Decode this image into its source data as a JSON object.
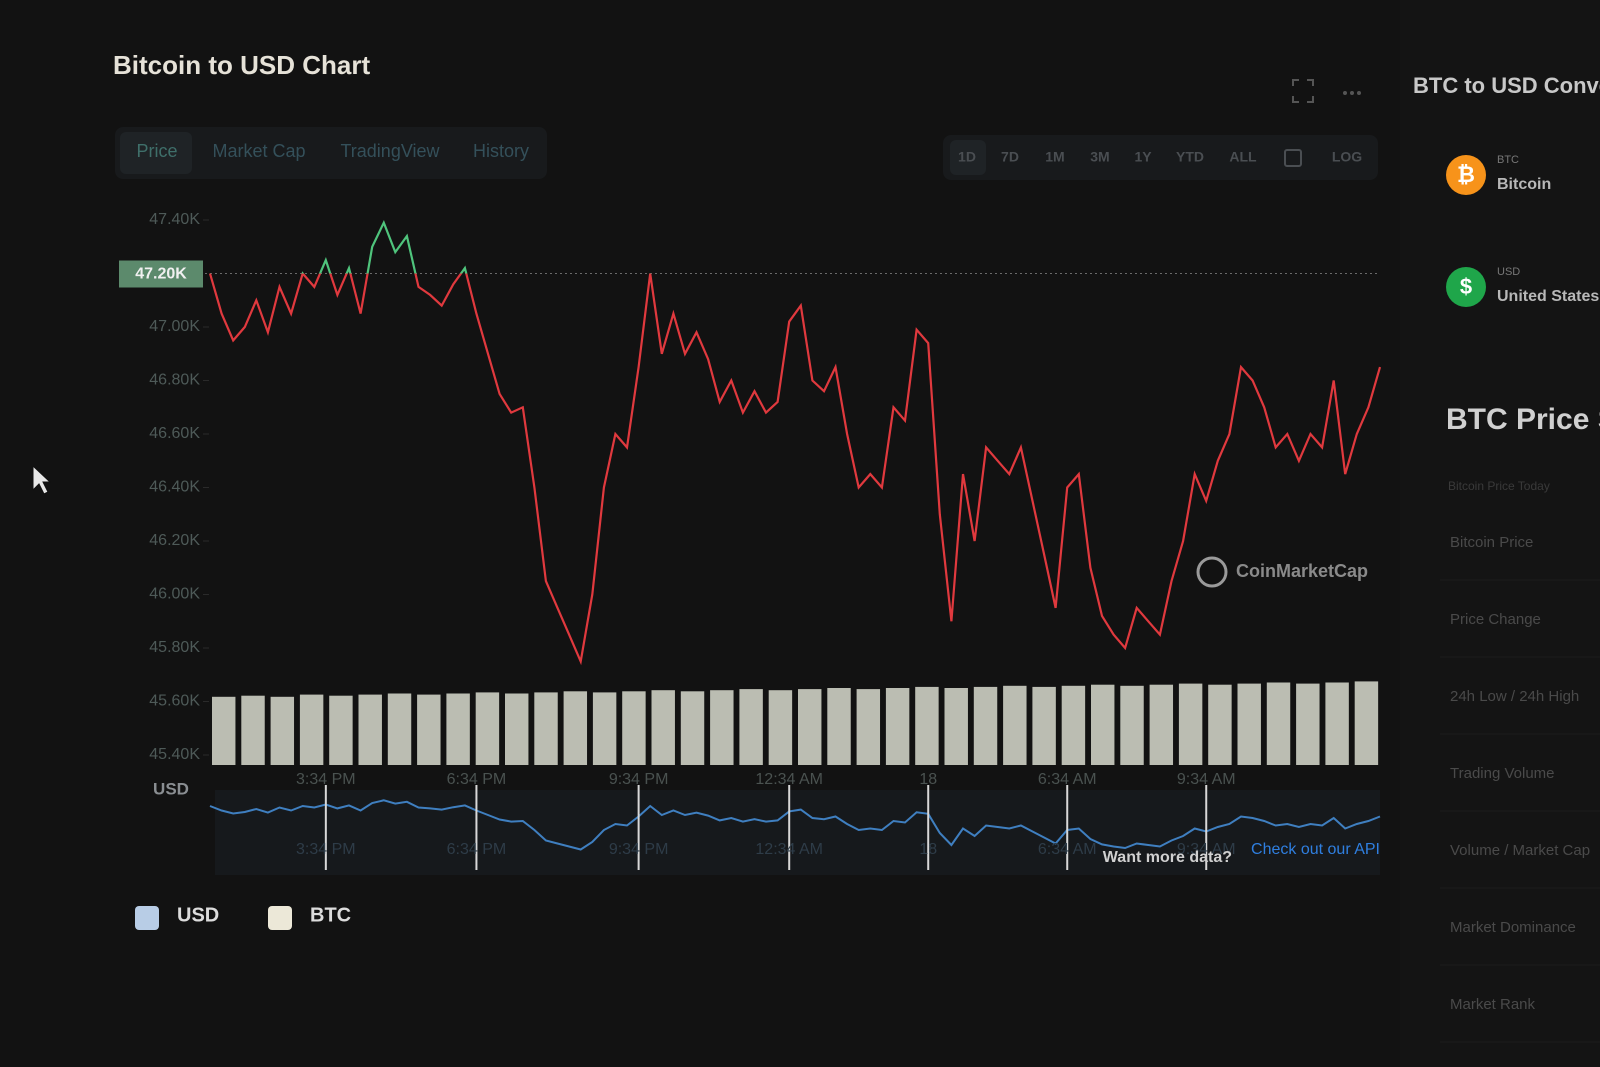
{
  "header": {
    "title": "Bitcoin to USD Chart"
  },
  "tabs": [
    "Price",
    "Market Cap",
    "TradingView",
    "History"
  ],
  "ranges": [
    "1D",
    "7D",
    "1M",
    "3M",
    "1Y",
    "YTD",
    "ALL",
    "LOG"
  ],
  "chart_data": {
    "type": "line",
    "y_label": "USD",
    "categories": [
      null,
      null,
      null,
      null,
      null,
      null,
      null,
      null,
      null,
      null,
      "3:34 PM",
      null,
      null,
      null,
      null,
      null,
      null,
      null,
      null,
      null,
      null,
      null,
      null,
      "6:34 PM",
      null,
      null,
      null,
      null,
      null,
      null,
      null,
      null,
      null,
      null,
      null,
      null,
      null,
      "9:34 PM",
      null,
      null,
      null,
      null,
      null,
      null,
      null,
      null,
      null,
      null,
      null,
      null,
      "12:34 AM",
      null,
      null,
      null,
      null,
      null,
      null,
      null,
      null,
      null,
      null,
      null,
      "18",
      null,
      null,
      null,
      null,
      null,
      null,
      null,
      null,
      null,
      null,
      null,
      "6:34 AM",
      null,
      null,
      null,
      null,
      null,
      null,
      null,
      null,
      null,
      null,
      null,
      "9:34 AM",
      null,
      null,
      null,
      null,
      null,
      null,
      null,
      null,
      null,
      null,
      null,
      null,
      null,
      null,
      null
    ],
    "series": [
      {
        "name": "USD",
        "color": "#e0393e",
        "color_above": "#4fc47c",
        "legend_color": "#b8cde6",
        "values": [
          47200,
          47050,
          46950,
          47000,
          47100,
          46980,
          47150,
          47050,
          47200,
          47150,
          47250,
          47120,
          47220,
          47050,
          47300,
          47390,
          47280,
          47340,
          47150,
          47120,
          47080,
          47160,
          47220,
          47050,
          46900,
          46750,
          46680,
          46700,
          46400,
          46050,
          45950,
          45850,
          45750,
          46000,
          46400,
          46600,
          46550,
          46850,
          47200,
          46900,
          47050,
          46900,
          46980,
          46880,
          46720,
          46800,
          46680,
          46760,
          46680,
          46720,
          47020,
          47080,
          46800,
          46760,
          46850,
          46600,
          46400,
          46450,
          46400,
          46700,
          46650,
          46990,
          46940,
          46300,
          45900,
          46450,
          46200,
          46550,
          46500,
          46450,
          46550,
          46350,
          46150,
          45950,
          46400,
          46450,
          46100,
          45920,
          45850,
          45800,
          45950,
          45900,
          45850,
          46050,
          46200,
          46450,
          46350,
          46500,
          46600,
          46850,
          46800,
          46700,
          46550,
          46600,
          46500,
          46600,
          46550,
          46800,
          46450,
          46600,
          46700,
          46850
        ]
      }
    ],
    "volume": {
      "name": "BTC",
      "color": "#d9dccf",
      "legend_color": "#ece8d8",
      "values": [
        62,
        63,
        62,
        64,
        63,
        64,
        65,
        64,
        65,
        66,
        65,
        66,
        67,
        66,
        67,
        68,
        67,
        68,
        69,
        68,
        69,
        70,
        69,
        70,
        71,
        70,
        71,
        72,
        71,
        72,
        73,
        72,
        73,
        74,
        73,
        74,
        75,
        74,
        75,
        76
      ]
    },
    "vlim": [
      0,
      100
    ],
    "ylim": [
      45400,
      47400
    ],
    "yticks": [
      {
        "value": 45400,
        "label": "45.40K"
      },
      {
        "value": 45600,
        "label": "45.60K"
      },
      {
        "value": 45800,
        "label": "45.80K"
      },
      {
        "value": 46000,
        "label": "46.00K"
      },
      {
        "value": 46200,
        "label": "46.20K"
      },
      {
        "value": 46400,
        "label": "46.40K"
      },
      {
        "value": 46600,
        "label": "46.60K"
      },
      {
        "value": 46800,
        "label": "46.80K"
      },
      {
        "value": 47000,
        "label": "47.00K"
      },
      {
        "value": 47400,
        "label": "47.40K"
      }
    ],
    "price_line": {
      "value": 47200,
      "label": "47.20K"
    },
    "navigator_color": "#3f7fc0",
    "watermark": "CoinMarketCap"
  },
  "footer": {
    "prompt": "Want more data?",
    "link": "Check out our API"
  },
  "sidebar": {
    "title": "BTC to USD Converter",
    "currencies": [
      {
        "code": "BTC",
        "name": "Bitcoin",
        "symbol": "₿",
        "color": "#f7931a"
      },
      {
        "code": "USD",
        "name": "United States Dollar",
        "symbol": "$",
        "color": "#1fa64a"
      }
    ],
    "stats_title": "BTC Price Statistics",
    "stats_subtitle": "Bitcoin Price Today",
    "stats": [
      "Bitcoin Price",
      "Price Change",
      "24h Low / 24h High",
      "Trading Volume",
      "Volume / Market Cap",
      "Market Dominance",
      "Market Rank"
    ]
  }
}
